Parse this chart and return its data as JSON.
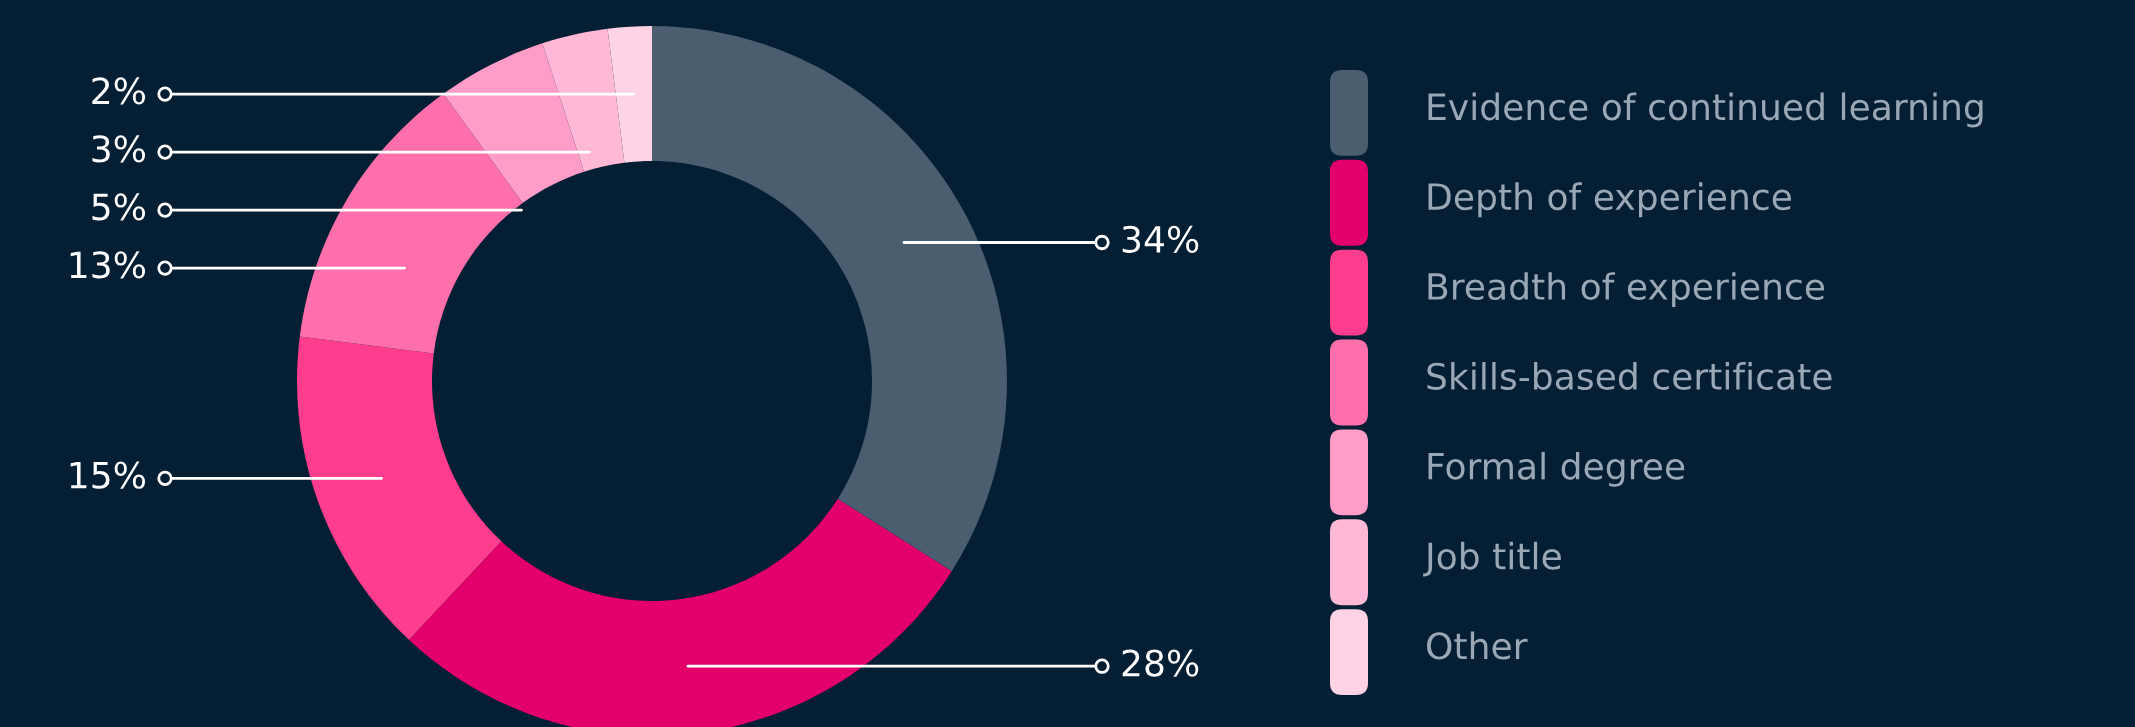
{
  "chart_data": {
    "type": "donut",
    "categories": [
      "Evidence of continued learning",
      "Depth of experience",
      "Breadth of experience",
      "Skills-based certificate",
      "Formal degree",
      "Job title",
      "Other"
    ],
    "values": [
      34,
      28,
      15,
      13,
      5,
      3,
      2
    ],
    "colors": [
      "#4a5e70",
      "#e4006a",
      "#ff3d8f",
      "#ff6fab",
      "#ff9dc8",
      "#ffb8d6",
      "#ffd3e6"
    ],
    "value_labels": [
      "34%",
      "28%",
      "15%",
      "13%",
      "5%",
      "3%",
      "2%"
    ],
    "legend": "right"
  }
}
